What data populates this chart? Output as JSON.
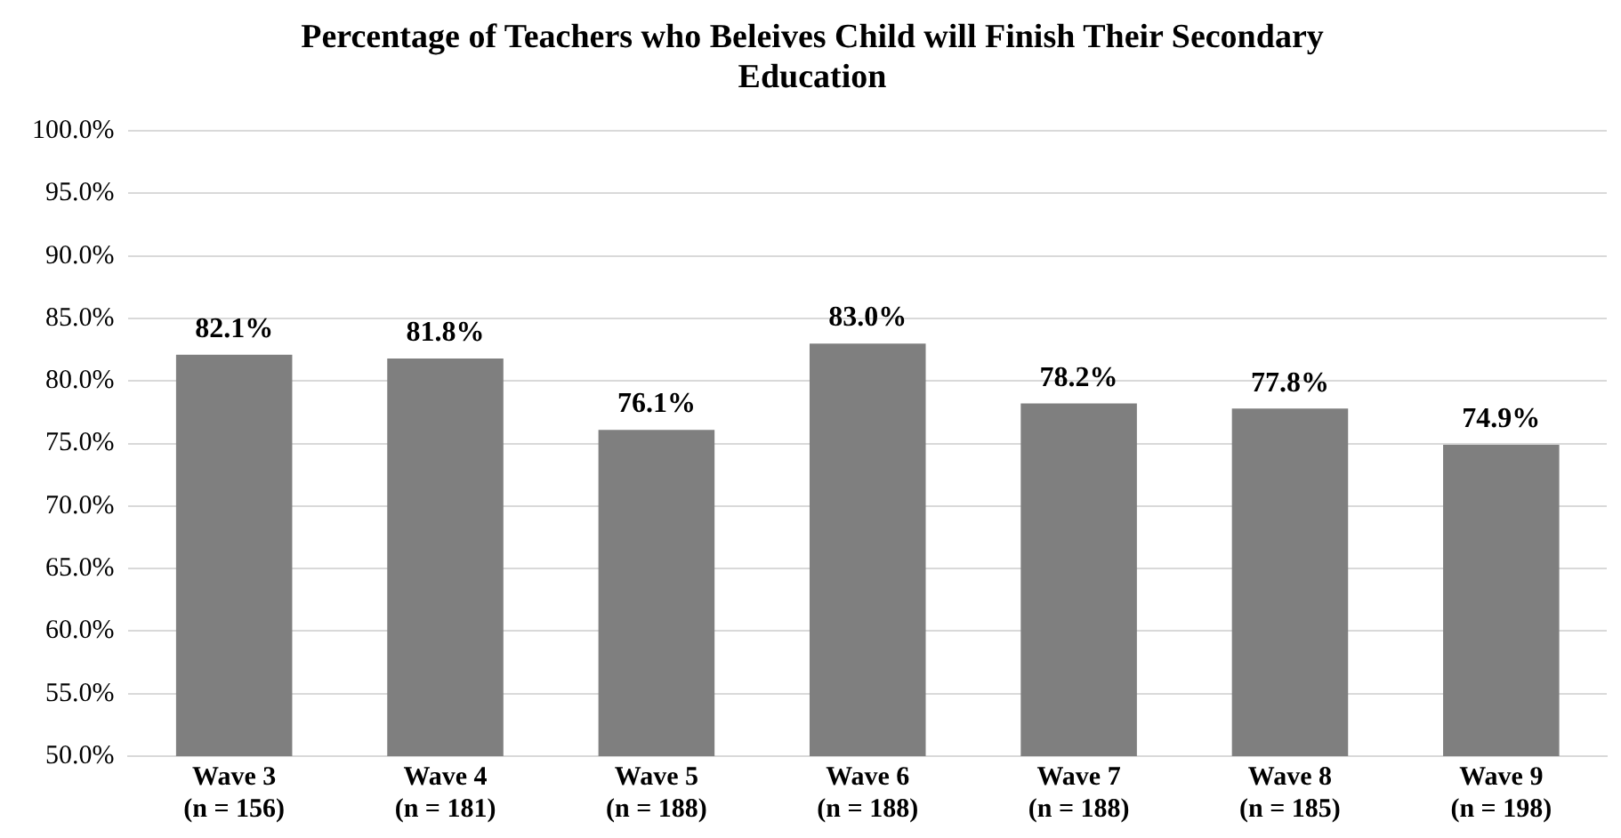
{
  "chart_data": {
    "type": "bar",
    "title": "Percentage of Teachers who Beleives Child will Finish Their Secondary Education",
    "categories": [
      "Wave 3\n(n = 156)",
      "Wave 4\n(n = 181)",
      "Wave 5\n(n = 188)",
      "Wave 6\n(n = 188)",
      "Wave 7\n(n = 188)",
      "Wave 8\n(n = 185)",
      "Wave 9\n(n = 198)"
    ],
    "values": [
      82.1,
      81.8,
      76.1,
      83.0,
      78.2,
      77.8,
      74.9
    ],
    "value_labels": [
      "82.1%",
      "81.8%",
      "76.1%",
      "83.0%",
      "78.2%",
      "77.8%",
      "74.9%"
    ],
    "color": "#7f7f7f",
    "ylim": [
      50,
      100
    ],
    "yticks": [
      {
        "value": 50,
        "label": "50.0%"
      },
      {
        "value": 55,
        "label": "55.0%"
      },
      {
        "value": 60,
        "label": "60.0%"
      },
      {
        "value": 65,
        "label": "65.0%"
      },
      {
        "value": 70,
        "label": "70.0%"
      },
      {
        "value": 75,
        "label": "75.0%"
      },
      {
        "value": 80,
        "label": "80.0%"
      },
      {
        "value": 85,
        "label": "85.0%"
      },
      {
        "value": 90,
        "label": "90.0%"
      },
      {
        "value": 95,
        "label": "95.0%"
      },
      {
        "value": 100,
        "label": "100.0%"
      }
    ],
    "grid": "y",
    "legend": false
  }
}
